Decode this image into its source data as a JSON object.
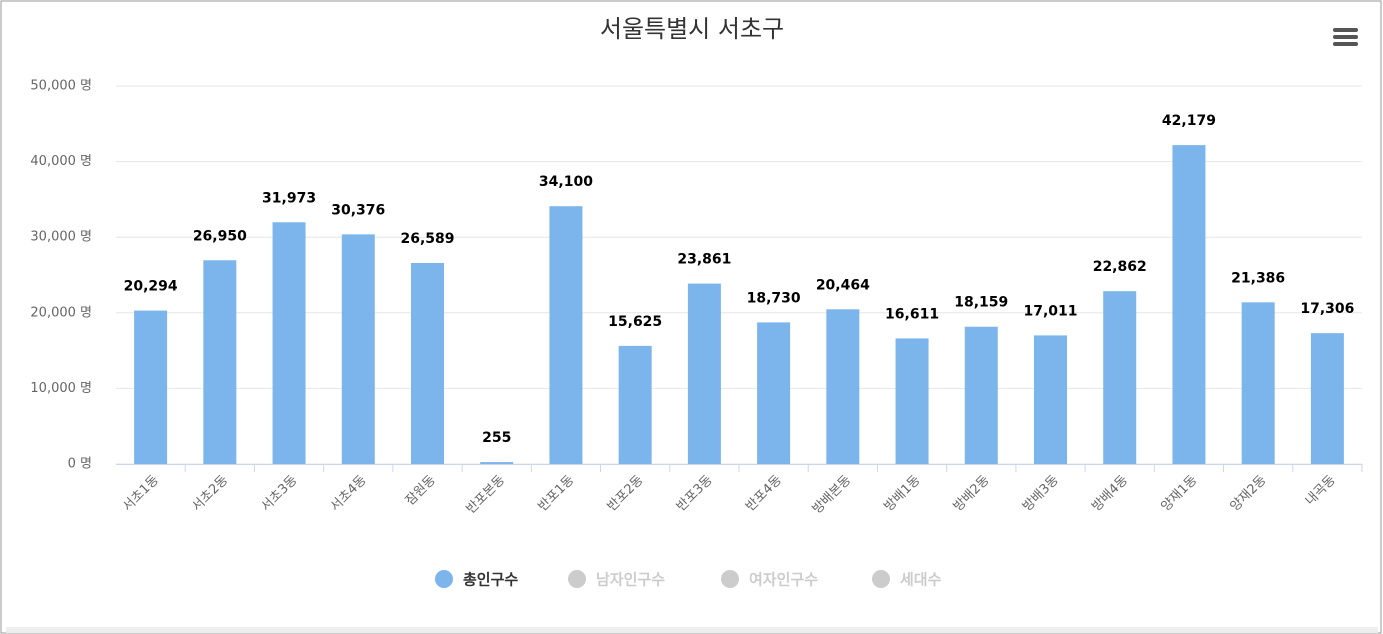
{
  "chart_data": {
    "type": "bar",
    "title": "서울특별시 서초구",
    "categories": [
      "서초1동",
      "서초2동",
      "서초3동",
      "서초4동",
      "잠원동",
      "반포본동",
      "반포1동",
      "반포2동",
      "반포3동",
      "반포4동",
      "방배본동",
      "방배1동",
      "방배2동",
      "방배3동",
      "방배4동",
      "양재1동",
      "양재2동",
      "내곡동"
    ],
    "series": [
      {
        "name": "총인구수",
        "color": "#7cb5ec",
        "visible": true,
        "values": [
          20294,
          26950,
          31973,
          30376,
          26589,
          255,
          34100,
          15625,
          23861,
          18730,
          20464,
          16611,
          18159,
          17011,
          22862,
          42179,
          21386,
          17306
        ],
        "value_labels": [
          "20,294",
          "26,950",
          "31,973",
          "30,376",
          "26,589",
          "255",
          "34,100",
          "15,625",
          "23,861",
          "18,730",
          "20,464",
          "16,611",
          "18,159",
          "17,011",
          "22,862",
          "42,179",
          "21,386",
          "17,306"
        ]
      },
      {
        "name": "남자인구수",
        "color": "#cccccc",
        "visible": false
      },
      {
        "name": "여자인구수",
        "color": "#cccccc",
        "visible": false
      },
      {
        "name": "세대수",
        "color": "#cccccc",
        "visible": false
      }
    ],
    "ylim": [
      0,
      50000
    ],
    "yticks": [
      {
        "value": 0,
        "label": "0 명"
      },
      {
        "value": 10000,
        "label": "10,000 명"
      },
      {
        "value": 20000,
        "label": "20,000 명"
      },
      {
        "value": 30000,
        "label": "30,000 명"
      },
      {
        "value": 40000,
        "label": "40,000 명"
      },
      {
        "value": 50000,
        "label": "50,000 명"
      }
    ],
    "grid": true
  }
}
